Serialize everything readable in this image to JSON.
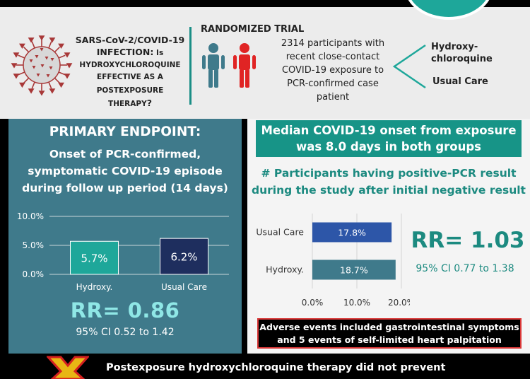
{
  "header": {
    "question": {
      "line1": "SARS-CoV-2/COVID-19",
      "line2a": "INFECTION:",
      "line2b": " Is",
      "line3": "HYDROXYCHLOROQUINE",
      "line4": "EFFECTIVE AS A",
      "line5a": "POSTEXPOSURE THERAPY",
      "line5b": "?"
    },
    "trial_label": "RANDOMIZED TRIAL",
    "participants_text": "2314 participants with recent close-contact COVID-19 exposure to PCR-confirmed case patient",
    "arms": {
      "arm1_line1": "Hydroxy-",
      "arm1_line2": "chloroquine",
      "arm2": "Usual Care"
    }
  },
  "primary_endpoint": {
    "title": "PRIMARY ENDPOINT:",
    "description": "Onset of PCR-confirmed, symptomatic COVID-19 episode during follow up period (14 days)",
    "rr": "RR= 0.86",
    "ci": "95% CI 0.52 to 1.42"
  },
  "median_text": "Median COVID-19 onset from exposure was 8.0 days in both groups",
  "pcr_title": "# Participants having positive-PCR result during the study after initial negative result",
  "secondary": {
    "rr": "RR= 1.03",
    "ci": "95% CI 0.77 to 1.38"
  },
  "adverse_text": "Adverse events included gastrointestinal symptoms and 5 events of self-limited heart palpitation",
  "conclusion_text": "Postexposure hydroxychloroquine therapy did not prevent",
  "colors": {
    "teal_dark": "#3f7a8b",
    "teal_bar": "#1ea79a",
    "navy_bar": "#1e2e5e",
    "blue_bar": "#2d56a8",
    "teal_hbar": "#3f7a8b",
    "virus": "#a83838",
    "person_teal": "#3f7a8b",
    "person_red": "#e02424"
  },
  "chart_data": [
    {
      "type": "bar",
      "orientation": "vertical",
      "categories": [
        "Hydroxy.",
        "Usual Care"
      ],
      "values": [
        5.7,
        6.2
      ],
      "data_labels": [
        "5.7%",
        "6.2%"
      ],
      "ylim": [
        0,
        10
      ],
      "yticks": [
        "0.0%",
        "5.0%",
        "10.0%"
      ],
      "grid": true
    },
    {
      "type": "bar",
      "orientation": "horizontal",
      "categories": [
        "Usual Care",
        "Hydroxy."
      ],
      "values": [
        17.8,
        18.7
      ],
      "data_labels": [
        "17.8%",
        "18.7%"
      ],
      "xlim": [
        0,
        20
      ],
      "xticks": [
        "0.0%",
        "10.0%",
        "20.0%"
      ],
      "grid": true
    }
  ]
}
